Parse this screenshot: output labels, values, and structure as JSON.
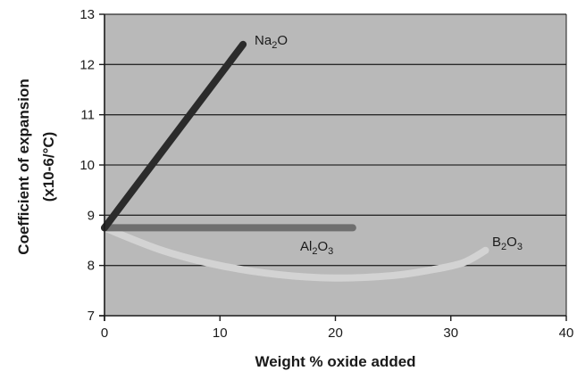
{
  "chart_data": {
    "type": "line",
    "title": "",
    "xlabel": "Weight % oxide added",
    "ylabel_line1": "Coefficient of expansion",
    "ylabel_line2": "(x10-6/°C)",
    "xlim": [
      0,
      40
    ],
    "ylim": [
      7,
      13
    ],
    "xticks": [
      "0",
      "10",
      "20",
      "30",
      "40"
    ],
    "yticks": [
      "7",
      "8",
      "9",
      "10",
      "11",
      "12",
      "13"
    ],
    "grid": "horizontal",
    "plot_background": "#b9b9b9",
    "grid_color": "#2a2a2a",
    "series": [
      {
        "name": "Na",
        "name_sub": "2",
        "name_suffix": "O",
        "color": "#2b2b2b",
        "x": [
          0,
          12
        ],
        "y": [
          8.75,
          12.4
        ]
      },
      {
        "name": "Al",
        "name_sub": "2",
        "name_suffix": "O",
        "name_sub2": "3",
        "color": "#6f6f6f",
        "x": [
          0,
          21.5
        ],
        "y": [
          8.75,
          8.75
        ]
      },
      {
        "name": "B",
        "name_sub": "2",
        "name_suffix": "O",
        "name_sub2": "3",
        "color": "#d3d3d3",
        "x": [
          0,
          5,
          10,
          15,
          20,
          25,
          28,
          31,
          33
        ],
        "y": [
          8.75,
          8.3,
          8.0,
          7.82,
          7.75,
          7.8,
          7.9,
          8.05,
          8.3
        ]
      }
    ]
  }
}
